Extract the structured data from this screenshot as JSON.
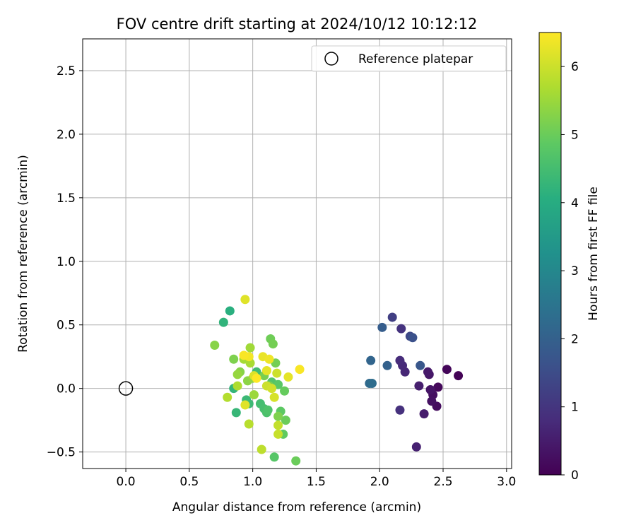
{
  "chart_data": {
    "type": "scatter",
    "title": "FOV centre drift starting at 2024/10/12 10:12:12",
    "xlabel": "Angular distance from reference (arcmin)",
    "ylabel": "Rotation from reference (arcmin)",
    "xlim": [
      -0.34,
      3.04
    ],
    "ylim": [
      -0.63,
      2.75
    ],
    "xticks": [
      0.0,
      0.5,
      1.0,
      1.5,
      2.0,
      2.5,
      3.0
    ],
    "xtick_labels": [
      "0.0",
      "0.5",
      "1.0",
      "1.5",
      "2.0",
      "2.5",
      "3.0"
    ],
    "yticks": [
      -0.5,
      0.0,
      0.5,
      1.0,
      1.5,
      2.0,
      2.5
    ],
    "ytick_labels": [
      "−0.5",
      "0.0",
      "0.5",
      "1.0",
      "1.5",
      "2.0",
      "2.5"
    ],
    "grid": true,
    "legend": {
      "position": "top-right",
      "entries": [
        "Reference platepar"
      ]
    },
    "reference_point": {
      "label": "Reference platepar",
      "x": 0.0,
      "y": 0.0,
      "marker": "open-circle",
      "color": "#000000"
    },
    "colorbar": {
      "label": "Hours from first FF file",
      "min": 0,
      "max": 6.5,
      "ticks": [
        0,
        1,
        2,
        3,
        4,
        5,
        6
      ],
      "tick_labels": [
        "0",
        "1",
        "2",
        "3",
        "4",
        "5",
        "6"
      ],
      "colormap": "viridis"
    },
    "series": [
      {
        "points": [
          {
            "x": 2.62,
            "y": 0.1,
            "h": 0.05
          },
          {
            "x": 2.53,
            "y": 0.15,
            "h": 0.1
          },
          {
            "x": 2.46,
            "y": 0.01,
            "h": 0.15
          },
          {
            "x": 2.45,
            "y": -0.14,
            "h": 0.2
          },
          {
            "x": 2.42,
            "y": -0.05,
            "h": 0.25
          },
          {
            "x": 2.41,
            "y": -0.1,
            "h": 0.3
          },
          {
            "x": 2.4,
            "y": -0.01,
            "h": 0.35
          },
          {
            "x": 2.39,
            "y": 0.11,
            "h": 0.4
          },
          {
            "x": 2.38,
            "y": 0.13,
            "h": 0.45
          },
          {
            "x": 2.35,
            "y": -0.2,
            "h": 0.5
          },
          {
            "x": 2.31,
            "y": 0.02,
            "h": 0.55
          },
          {
            "x": 2.29,
            "y": -0.46,
            "h": 0.6
          },
          {
            "x": 2.2,
            "y": 0.13,
            "h": 0.7
          },
          {
            "x": 2.18,
            "y": 0.18,
            "h": 0.75
          },
          {
            "x": 2.16,
            "y": 0.22,
            "h": 0.8
          },
          {
            "x": 2.16,
            "y": -0.17,
            "h": 0.9
          },
          {
            "x": 2.17,
            "y": 0.47,
            "h": 0.95
          },
          {
            "x": 2.1,
            "y": 0.56,
            "h": 1.2
          },
          {
            "x": 2.24,
            "y": 0.41,
            "h": 1.4
          },
          {
            "x": 2.26,
            "y": 0.4,
            "h": 1.6
          },
          {
            "x": 2.32,
            "y": 0.18,
            "h": 1.75
          },
          {
            "x": 2.02,
            "y": 0.48,
            "h": 1.9
          },
          {
            "x": 2.06,
            "y": 0.18,
            "h": 2.0
          },
          {
            "x": 1.93,
            "y": 0.22,
            "h": 2.1
          },
          {
            "x": 1.92,
            "y": 0.04,
            "h": 2.2
          },
          {
            "x": 1.94,
            "y": 0.04,
            "h": 2.3
          },
          {
            "x": 0.82,
            "y": 0.61,
            "h": 4.1
          },
          {
            "x": 0.77,
            "y": 0.52,
            "h": 4.2
          },
          {
            "x": 0.85,
            "y": 0.0,
            "h": 4.25
          },
          {
            "x": 0.87,
            "y": -0.19,
            "h": 4.3
          },
          {
            "x": 0.95,
            "y": -0.09,
            "h": 4.35
          },
          {
            "x": 0.97,
            "y": -0.12,
            "h": 4.4
          },
          {
            "x": 1.03,
            "y": 0.13,
            "h": 4.45
          },
          {
            "x": 1.06,
            "y": -0.12,
            "h": 4.5
          },
          {
            "x": 1.09,
            "y": -0.16,
            "h": 4.55
          },
          {
            "x": 1.11,
            "y": -0.19,
            "h": 4.6
          },
          {
            "x": 1.12,
            "y": -0.17,
            "h": 4.65
          },
          {
            "x": 1.15,
            "y": 0.05,
            "h": 4.7
          },
          {
            "x": 1.17,
            "y": -0.54,
            "h": 4.75
          },
          {
            "x": 1.2,
            "y": 0.03,
            "h": 4.8
          },
          {
            "x": 1.22,
            "y": -0.18,
            "h": 4.85
          },
          {
            "x": 1.24,
            "y": -0.36,
            "h": 4.9
          },
          {
            "x": 1.25,
            "y": -0.02,
            "h": 4.95
          },
          {
            "x": 1.26,
            "y": -0.25,
            "h": 5.0
          },
          {
            "x": 1.34,
            "y": -0.57,
            "h": 5.0
          },
          {
            "x": 1.14,
            "y": 0.39,
            "h": 5.05
          },
          {
            "x": 1.16,
            "y": 0.35,
            "h": 5.1
          },
          {
            "x": 1.18,
            "y": 0.2,
            "h": 5.1
          },
          {
            "x": 1.09,
            "y": 0.1,
            "h": 5.15
          },
          {
            "x": 1.13,
            "y": 0.02,
            "h": 5.15
          },
          {
            "x": 1.2,
            "y": -0.22,
            "h": 5.2
          },
          {
            "x": 0.85,
            "y": 0.23,
            "h": 5.2
          },
          {
            "x": 0.7,
            "y": 0.34,
            "h": 5.3
          },
          {
            "x": 0.9,
            "y": 0.13,
            "h": 5.3
          },
          {
            "x": 0.96,
            "y": 0.06,
            "h": 5.35
          },
          {
            "x": 1.0,
            "y": 0.08,
            "h": 5.4
          },
          {
            "x": 0.88,
            "y": 0.11,
            "h": 5.45
          },
          {
            "x": 1.01,
            "y": -0.05,
            "h": 5.5
          },
          {
            "x": 0.98,
            "y": 0.32,
            "h": 5.55
          },
          {
            "x": 0.93,
            "y": 0.23,
            "h": 5.6
          },
          {
            "x": 0.98,
            "y": 0.2,
            "h": 5.65
          },
          {
            "x": 0.88,
            "y": 0.02,
            "h": 5.7
          },
          {
            "x": 0.8,
            "y": -0.07,
            "h": 5.75
          },
          {
            "x": 0.97,
            "y": -0.28,
            "h": 5.8
          },
          {
            "x": 1.07,
            "y": -0.48,
            "h": 5.85
          },
          {
            "x": 1.2,
            "y": -0.29,
            "h": 5.9
          },
          {
            "x": 1.2,
            "y": -0.36,
            "h": 5.95
          },
          {
            "x": 1.19,
            "y": 0.12,
            "h": 6.0
          },
          {
            "x": 1.11,
            "y": 0.02,
            "h": 6.0
          },
          {
            "x": 1.15,
            "y": 0.0,
            "h": 6.05
          },
          {
            "x": 1.17,
            "y": -0.07,
            "h": 6.1
          },
          {
            "x": 1.01,
            "y": 0.1,
            "h": 6.15
          },
          {
            "x": 0.94,
            "y": -0.13,
            "h": 6.2
          },
          {
            "x": 0.94,
            "y": 0.7,
            "h": 6.2
          },
          {
            "x": 1.11,
            "y": 0.14,
            "h": 6.25
          },
          {
            "x": 1.28,
            "y": 0.09,
            "h": 6.25
          },
          {
            "x": 1.08,
            "y": 0.25,
            "h": 6.3
          },
          {
            "x": 1.13,
            "y": 0.23,
            "h": 6.35
          },
          {
            "x": 0.97,
            "y": 0.25,
            "h": 6.4
          },
          {
            "x": 0.93,
            "y": 0.26,
            "h": 6.45
          },
          {
            "x": 1.37,
            "y": 0.15,
            "h": 6.45
          },
          {
            "x": 1.03,
            "y": 0.08,
            "h": 6.5
          }
        ]
      }
    ]
  }
}
